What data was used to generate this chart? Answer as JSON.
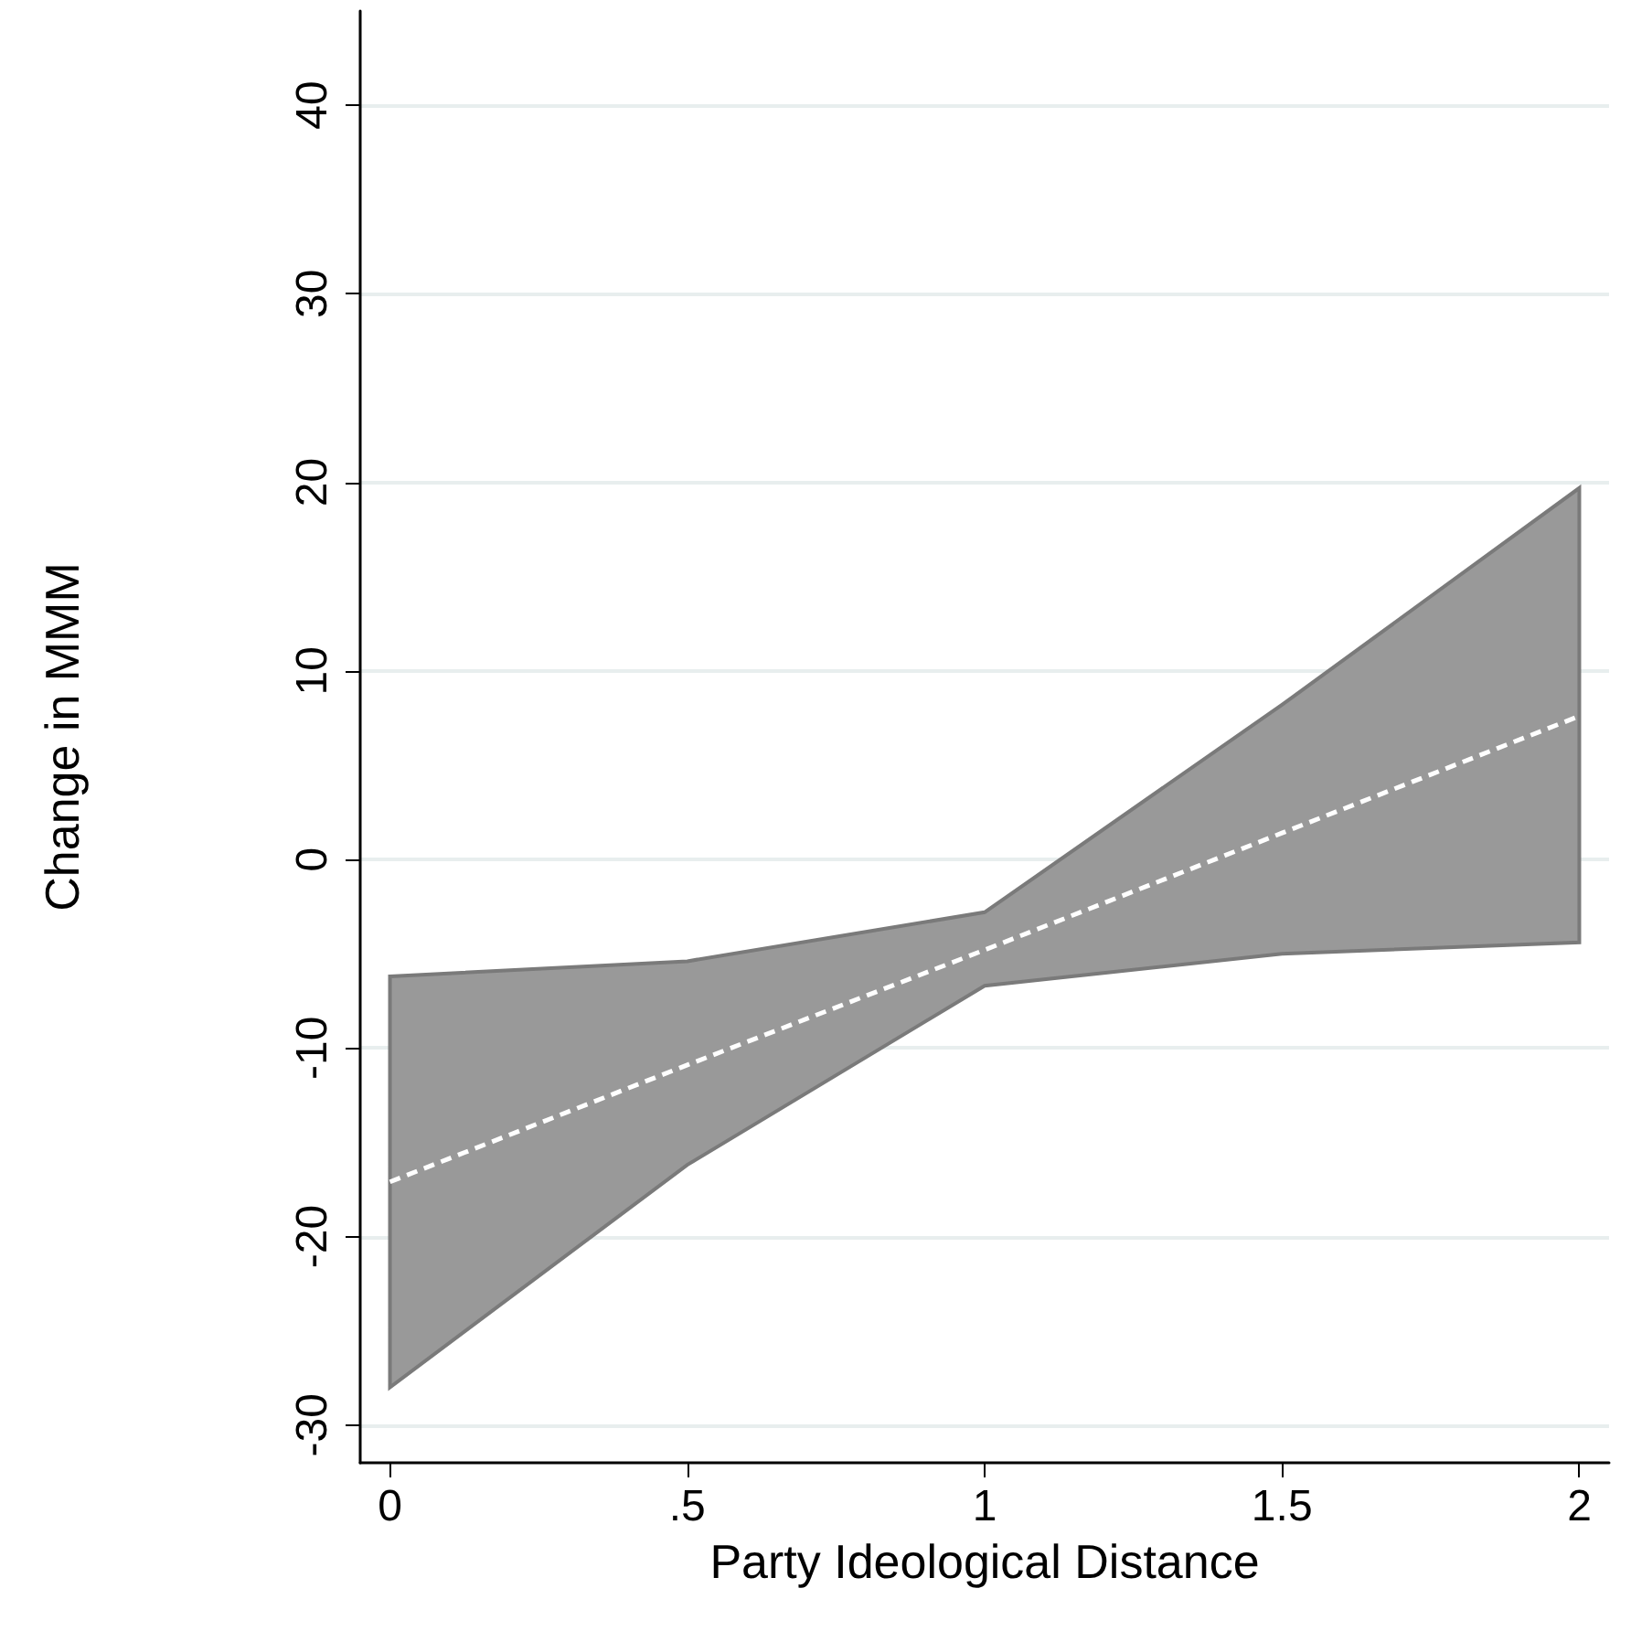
{
  "chart_data": {
    "type": "line",
    "xlabel": "Party Ideological Distance",
    "ylabel": "Change in MMM",
    "x": [
      0,
      0.5,
      1,
      1.5,
      2
    ],
    "series": [
      {
        "color": "#ffffff",
        "line_style": "dashed",
        "values": [
          -17.1,
          -10.9,
          -4.8,
          1.4,
          7.6
        ],
        "lower": [
          -28.0,
          -16.2,
          -6.7,
          -5.0,
          -4.4
        ],
        "upper": [
          -6.2,
          -5.4,
          -2.8,
          8.2,
          19.7
        ]
      }
    ],
    "xlim": [
      -0.05,
      2.05
    ],
    "xticks": [
      0,
      {
        "value": 0.5,
        "label": ".5"
      },
      1,
      1.5,
      2
    ],
    "ylim": [
      -32,
      45
    ],
    "yticks": [
      -30,
      -20,
      -10,
      0,
      10,
      20,
      30,
      40
    ],
    "grid": "y",
    "marker": "none"
  }
}
